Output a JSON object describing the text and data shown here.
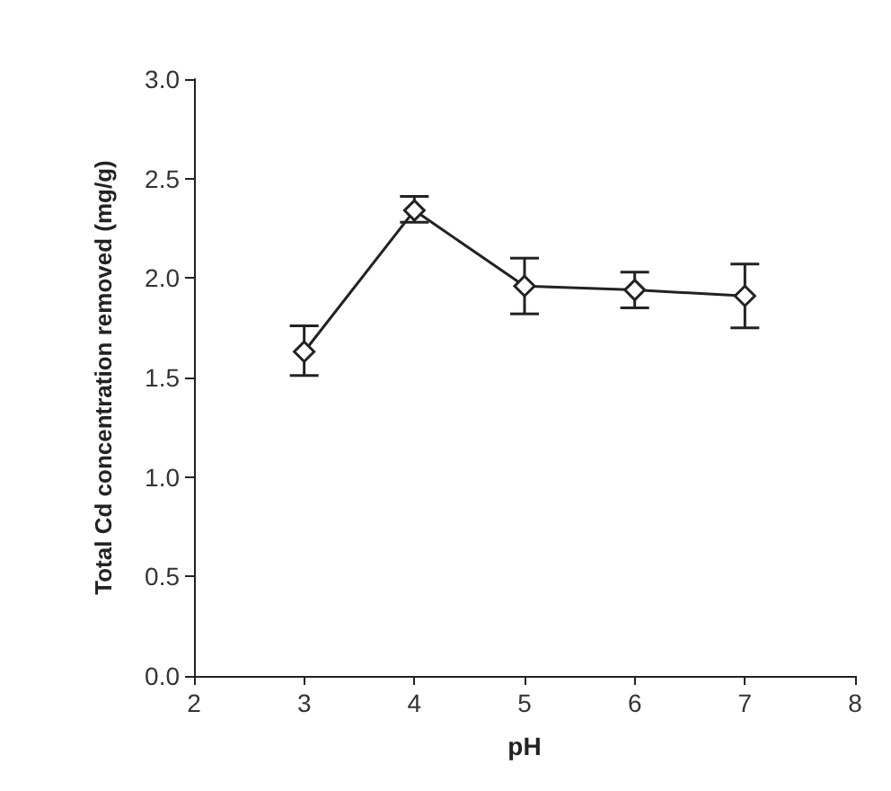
{
  "chart_data": {
    "type": "line",
    "xlabel": "pH",
    "ylabel": "Total Cd concentration removed (mg/g)",
    "x": [
      3,
      4,
      5,
      6,
      7
    ],
    "series": [
      {
        "color": "#222222",
        "values": [
          1.63,
          2.34,
          1.96,
          1.94,
          1.91
        ],
        "errors": [
          [
            1.51,
            1.76
          ],
          [
            2.28,
            2.41
          ],
          [
            1.82,
            2.1
          ],
          [
            1.85,
            2.03
          ],
          [
            1.75,
            2.07
          ]
        ]
      }
    ],
    "xlim": [
      2,
      8
    ],
    "xticks": [
      2,
      3,
      4,
      5,
      6,
      7,
      8
    ],
    "ylim": [
      0,
      3
    ],
    "yticks": [
      {
        "value": 0,
        "label": "0.0"
      },
      0.5,
      {
        "value": 1,
        "label": "1.0"
      },
      1.5,
      {
        "value": 2,
        "label": "2.0"
      },
      2.5,
      {
        "value": 3,
        "label": "3.0"
      }
    ],
    "grid": false,
    "marker": "diamond",
    "line_style": "solid"
  }
}
